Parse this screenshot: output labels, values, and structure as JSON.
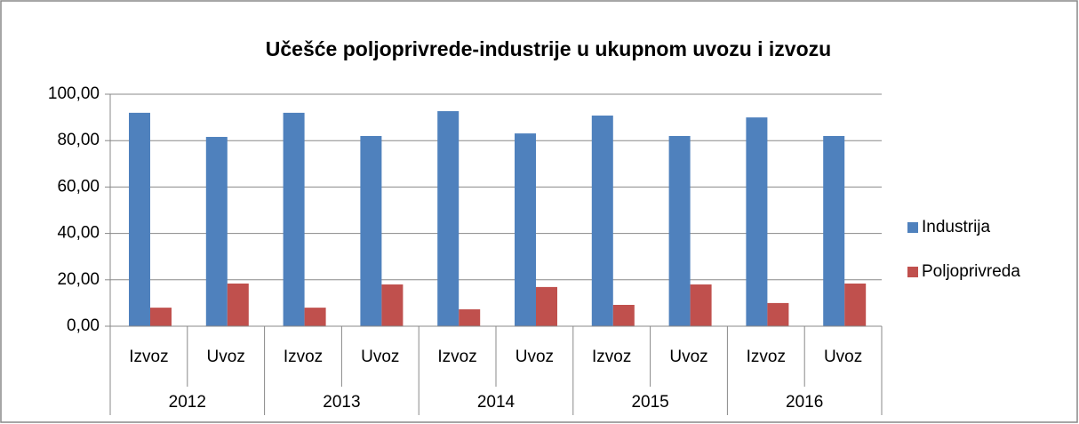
{
  "chart_data": {
    "type": "bar",
    "title": "Učešće poljoprivrede-industrije u ukupnom uvozu i izvozu",
    "categories": [
      "Izvoz",
      "Uvoz",
      "Izvoz",
      "Uvoz",
      "Izvoz",
      "Uvoz",
      "Izvoz",
      "Uvoz",
      "Izvoz",
      "Uvoz"
    ],
    "groups": [
      "2012",
      "2013",
      "2014",
      "2015",
      "2016"
    ],
    "series": [
      {
        "name": "Industrija",
        "color": "#4f81bd",
        "values": [
          92.0,
          81.6,
          92.0,
          82.0,
          92.7,
          83.1,
          90.8,
          82.0,
          90.0,
          82.0
        ]
      },
      {
        "name": "Poljoprivreda",
        "color": "#c0504d",
        "values": [
          8.0,
          18.4,
          8.0,
          18.0,
          7.3,
          16.9,
          9.2,
          18.0,
          10.0,
          18.4
        ]
      }
    ],
    "ylim": [
      0,
      100
    ],
    "yticks": [
      {
        "value": 0,
        "label": "0,00"
      },
      {
        "value": 20,
        "label": "20,00"
      },
      {
        "value": 40,
        "label": "40,00"
      },
      {
        "value": 60,
        "label": "60,00"
      },
      {
        "value": 80,
        "label": "80,00"
      },
      {
        "value": 100,
        "label": "100,00"
      }
    ],
    "grid": true,
    "legend": "right"
  }
}
